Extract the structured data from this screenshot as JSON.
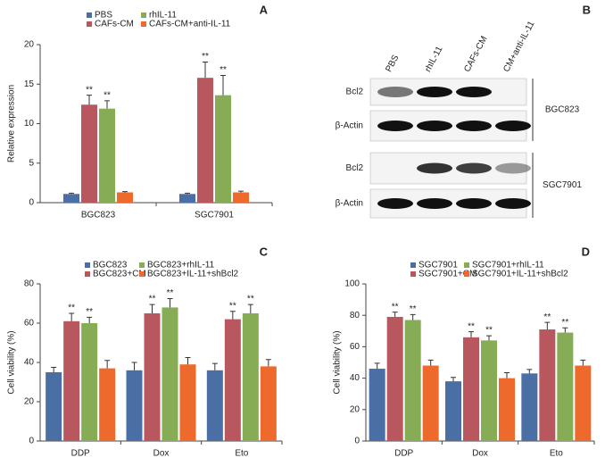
{
  "chart_data": [
    {
      "type": "bar",
      "label": "A",
      "ylabel": "Relative expression",
      "categories": [
        "BGC823",
        "SGC7901"
      ],
      "series": [
        {
          "name": "PBS",
          "color": "#4a6fa5",
          "values": [
            1.1,
            1.1
          ],
          "errors": [
            0.1,
            0.1
          ]
        },
        {
          "name": "CAFs-CM",
          "color": "#b9575f",
          "values": [
            12.4,
            15.8
          ],
          "errors": [
            1.2,
            2.0
          ],
          "sig": [
            "**",
            "**"
          ]
        },
        {
          "name": "rhIL-11",
          "color": "#86ad55",
          "values": [
            11.9,
            13.6
          ],
          "errors": [
            1.0,
            2.5
          ],
          "sig": [
            "**",
            "**"
          ]
        },
        {
          "name": "CAFs-CM+anti-IL-11",
          "color": "#ee6a2c",
          "values": [
            1.3,
            1.3
          ],
          "errors": [
            0.1,
            0.15
          ]
        }
      ],
      "ylim": [
        0,
        20
      ],
      "yticks": [
        0,
        5,
        10,
        15,
        20
      ]
    },
    {
      "type": "bar",
      "label": "C",
      "ylabel": "Cell viability (%)",
      "categories": [
        "DDP",
        "Dox",
        "Eto"
      ],
      "series": [
        {
          "name": "BGC823",
          "color": "#4a6fa5",
          "values": [
            35,
            36,
            36
          ],
          "errors": [
            2.5,
            4,
            3.5
          ]
        },
        {
          "name": "BGC823+CM",
          "color": "#b9575f",
          "values": [
            61,
            65,
            62
          ],
          "errors": [
            4,
            4.5,
            4
          ],
          "sig": [
            "**",
            "**",
            "**"
          ]
        },
        {
          "name": "BGC823+rhIL-11",
          "color": "#86ad55",
          "values": [
            60,
            68,
            65
          ],
          "errors": [
            3,
            4.5,
            4.5
          ],
          "sig": [
            "**",
            "**",
            "**"
          ]
        },
        {
          "name": "BGC823+IL-11+shBcl2",
          "color": "#ee6a2c",
          "values": [
            37,
            39,
            38
          ],
          "errors": [
            4,
            3.5,
            3.5
          ]
        }
      ],
      "ylim": [
        0,
        80
      ],
      "yticks": [
        0,
        20,
        40,
        60,
        80
      ]
    },
    {
      "type": "bar",
      "label": "D",
      "ylabel": "Cell viability (%)",
      "categories": [
        "DDP",
        "Dox",
        "Eto"
      ],
      "series": [
        {
          "name": "SGC7901",
          "color": "#4a6fa5",
          "values": [
            46,
            38,
            43
          ],
          "errors": [
            3.5,
            2.5,
            2.5
          ]
        },
        {
          "name": "SGC7901+CM",
          "color": "#b9575f",
          "values": [
            79,
            66,
            71
          ],
          "errors": [
            3,
            3.5,
            4.5
          ],
          "sig": [
            "**",
            "**",
            "**"
          ]
        },
        {
          "name": "SGC7901+rhIL-11",
          "color": "#86ad55",
          "values": [
            77,
            64,
            69
          ],
          "errors": [
            3.5,
            3,
            3
          ],
          "sig": [
            "**",
            "**",
            "**"
          ]
        },
        {
          "name": "SGC7901+IL-11+shBcl2",
          "color": "#ee6a2c",
          "values": [
            48,
            40,
            48
          ],
          "errors": [
            3.5,
            3.5,
            3.5
          ]
        }
      ],
      "ylim": [
        0,
        100
      ],
      "yticks": [
        0,
        20,
        40,
        60,
        80,
        100
      ]
    }
  ],
  "blot": {
    "label": "B",
    "lanes": [
      "PBS",
      "rhIL-11",
      "CAFs-CM",
      "CM+anti-IL-11"
    ],
    "rows": [
      "Bcl2",
      "β-Actin",
      "Bcl2",
      "β-Actin"
    ],
    "groups": [
      "BGC823",
      "SGC7901"
    ]
  }
}
